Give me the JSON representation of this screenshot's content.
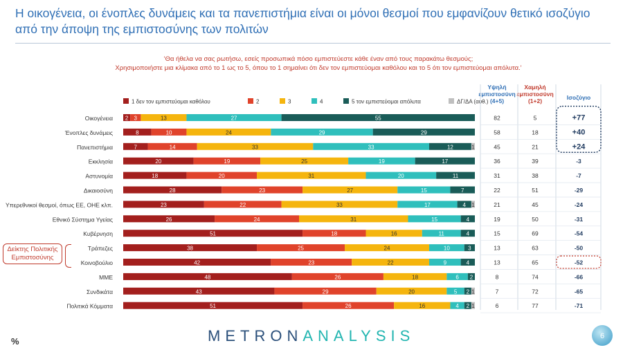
{
  "title": "Η οικογένεια, οι ένοπλες δυνάμεις και τα πανεπιστήμια είναι οι μόνοι θεσμοί που εμφανίζουν θετικό ισοζύγιο από την άποψη της εμπιστοσύνης των πολιτών",
  "question_line1": "'Θα ήθελα να σας ρωτήσω, εσείς προσωπικά πόσο εμπιστεύεστε κάθε έναν από τους παρακάτω θεσμούς;",
  "question_line2": "Χρησιμοποιήστε μια κλίμακα από το 1 ως το 5, όπου το 1 σημαίνει ότι δεν τον εμπιστεύομαι καθόλου και το 5 ότι τον εμπιστεύομαι απόλυτα.'",
  "side_box": "Δείκτης Πολιτικής Εμπιστοσύνης",
  "footer_percent": "%",
  "logo_part1": "METRON",
  "logo_part2": "ANALYSIS",
  "page_number": "6",
  "chart_data": {
    "type": "bar",
    "stacked": true,
    "orientation": "horizontal",
    "categories": [
      "Οικογένεια",
      "Ένοπλες δυνάμεις",
      "Πανεπιστήμια",
      "Εκκλησία",
      "Αστυνομία",
      "Δικαιοσύνη",
      "Υπερεθνικοί θεσμοί, όπως ΕΕ, ΟΗΕ κλπ.",
      "Εθνικό Σύστημα Υγείας",
      "Κυβέρνηση",
      "Τράπεζες",
      "Κοινοβούλιο",
      "ΜΜΕ",
      "Συνδικάτα",
      "Πολιτικά Κόμματα"
    ],
    "series": [
      {
        "name": "1  δεν τον εμπιστεύομαι καθόλου",
        "color": "#a31f1d",
        "values": [
          2,
          8,
          7,
          20,
          18,
          28,
          23,
          26,
          51,
          38,
          42,
          48,
          43,
          51
        ]
      },
      {
        "name": "2",
        "color": "#e0432b",
        "values": [
          3,
          10,
          14,
          19,
          20,
          23,
          22,
          24,
          18,
          25,
          23,
          26,
          29,
          26
        ]
      },
      {
        "name": "3",
        "color": "#f5b50e",
        "values": [
          13,
          24,
          33,
          25,
          31,
          27,
          33,
          31,
          16,
          24,
          22,
          18,
          20,
          16
        ]
      },
      {
        "name": "4",
        "color": "#2fbfbc",
        "values": [
          27,
          29,
          33,
          19,
          20,
          15,
          17,
          15,
          11,
          10,
          9,
          6,
          5,
          4
        ]
      },
      {
        "name": "5 τον εμπιστεύομαι απόλυτα",
        "color": "#1a5c58",
        "values": [
          55,
          29,
          12,
          17,
          11,
          7,
          4,
          4,
          4,
          3,
          4,
          2,
          2,
          2
        ]
      },
      {
        "name": "ΔΓ/ΔΑ (αυθ.)",
        "color": "#bfbfbf",
        "values": [
          0,
          0,
          1,
          0,
          0,
          0,
          1,
          0,
          0,
          0,
          0,
          0,
          1,
          1
        ]
      }
    ],
    "columns": [
      {
        "header": "Υψηλή εμπιστοσύνη (4+5)",
        "values": [
          "82",
          "58",
          "45",
          "36",
          "31",
          "22",
          "21",
          "19",
          "15",
          "13",
          "13",
          "8",
          "7",
          "6"
        ]
      },
      {
        "header": "Χαμηλή εμπιστοσύνη (1+2)",
        "values": [
          "5",
          "18",
          "21",
          "39",
          "38",
          "51",
          "45",
          "50",
          "69",
          "63",
          "65",
          "74",
          "72",
          "77"
        ]
      },
      {
        "header": "Ισοζύγιο",
        "values": [
          "+77",
          "+40",
          "+24",
          "-3",
          "-7",
          "-29",
          "-24",
          "-31",
          "-54",
          "-50",
          "-52",
          "-66",
          "-65",
          "-71"
        ]
      }
    ],
    "xlim": [
      0,
      100
    ]
  }
}
